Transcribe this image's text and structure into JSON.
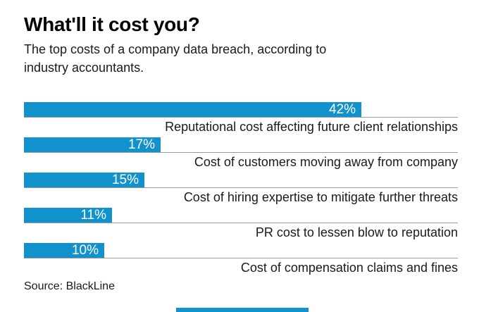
{
  "header": {
    "title": "What'll it cost you?",
    "subtitle_line1": "The top costs of a company data breach, according to",
    "subtitle_line2": "industry accountants."
  },
  "chart_data": {
    "type": "bar",
    "orientation": "horizontal",
    "title": "What'll it cost you?",
    "subtitle": "The top costs of a company data breach, according to industry accountants.",
    "categories": [
      "Reputational cost affecting future client relationships",
      "Cost of customers moving away from company",
      "Cost of hiring expertise to mitigate further threats",
      "PR cost to lessen blow to reputation",
      "Cost of compensation claims and fines"
    ],
    "values": [
      42,
      17,
      15,
      11,
      10
    ],
    "value_suffix": "%",
    "xlim": [
      0,
      54
    ],
    "grid": false,
    "legend": false,
    "bar_color": "#1292cd",
    "value_label_color": "#ffffff",
    "baseline_color": "#9a9a9a"
  },
  "source": {
    "label": "Source: BlackLine"
  },
  "footer": {
    "accent_bar_color": "#1292cd"
  }
}
